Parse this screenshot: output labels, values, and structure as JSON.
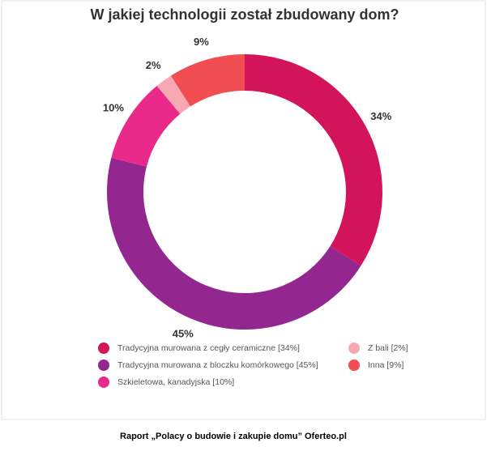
{
  "chart_data": {
    "type": "pie",
    "donut": true,
    "title": "W jakiej technologii został zbudowany dom?",
    "categories": [
      "Tradycyjna murowana z cegły ceramiczne [34%]",
      "Tradycyjna murowana z bloczku komórkowego [45%]",
      "Szkieletowa, kanadyjska [10%]",
      "Z bali [2%]",
      "Inna [9%]"
    ],
    "values": [
      34,
      45,
      10,
      2,
      9
    ],
    "value_labels": [
      "34%",
      "45%",
      "10%",
      "2%",
      "9%"
    ],
    "colors": [
      "#d4145a",
      "#93278f",
      "#ea2a8a",
      "#f7a8b2",
      "#f04e52"
    ],
    "source": "Raport „Polacy o budowie i zakupie domu” Oferteo.pl"
  }
}
